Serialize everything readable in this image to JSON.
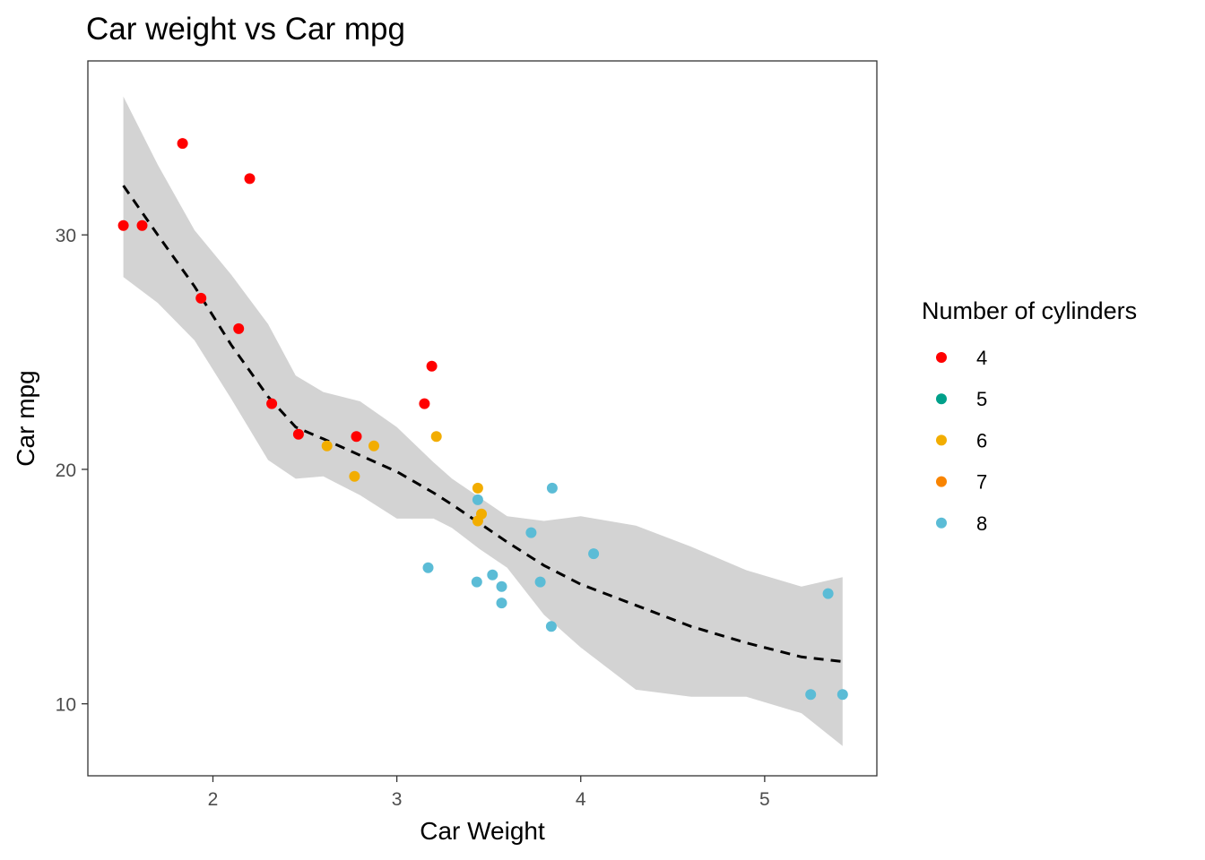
{
  "chart_data": {
    "type": "scatter",
    "title": "Car weight vs Car mpg",
    "xlabel": "Car Weight",
    "ylabel": "Car mpg",
    "xlim": [
      1.32,
      5.61
    ],
    "ylim": [
      6.93,
      37.42
    ],
    "x_ticks": [
      2,
      3,
      4,
      5
    ],
    "y_ticks": [
      10,
      20,
      30
    ],
    "grid": false,
    "legend": {
      "title": "Number of cylinders",
      "placement": "right",
      "entries": [
        {
          "label": "4",
          "color": "#ff0000"
        },
        {
          "label": "5",
          "color": "#00a08a"
        },
        {
          "label": "6",
          "color": "#f2ad00"
        },
        {
          "label": "7",
          "color": "#f98400"
        },
        {
          "label": "8",
          "color": "#5bbcd6"
        }
      ]
    },
    "series": [
      {
        "name": "4",
        "color": "#ff0000",
        "points": [
          [
            1.513,
            30.4
          ],
          [
            1.615,
            30.4
          ],
          [
            1.835,
            33.9
          ],
          [
            1.935,
            27.3
          ],
          [
            2.14,
            26.0
          ],
          [
            2.2,
            32.4
          ],
          [
            2.32,
            22.8
          ],
          [
            2.465,
            21.5
          ],
          [
            2.78,
            21.4
          ],
          [
            3.15,
            22.8
          ],
          [
            3.19,
            24.4
          ]
        ]
      },
      {
        "name": "6",
        "color": "#f2ad00",
        "points": [
          [
            2.62,
            21.0
          ],
          [
            2.77,
            19.7
          ],
          [
            2.875,
            21.0
          ],
          [
            3.215,
            21.4
          ],
          [
            3.44,
            19.2
          ],
          [
            3.44,
            17.8
          ],
          [
            3.46,
            18.1
          ]
        ]
      },
      {
        "name": "8",
        "color": "#5bbcd6",
        "points": [
          [
            3.17,
            15.8
          ],
          [
            3.435,
            15.2
          ],
          [
            3.44,
            18.7
          ],
          [
            3.52,
            15.5
          ],
          [
            3.57,
            15.0
          ],
          [
            3.57,
            14.3
          ],
          [
            3.73,
            17.3
          ],
          [
            3.78,
            15.2
          ],
          [
            3.84,
            13.3
          ],
          [
            3.845,
            19.2
          ],
          [
            4.07,
            16.4
          ],
          [
            5.25,
            10.4
          ],
          [
            5.345,
            14.7
          ],
          [
            5.424,
            10.4
          ]
        ]
      }
    ],
    "smooth": {
      "style": "dashed",
      "line_color": "#000000",
      "band_color": "#d3d3d3",
      "x": [
        1.513,
        1.7,
        1.9,
        2.1,
        2.3,
        2.45,
        2.6,
        2.8,
        3.0,
        3.2,
        3.3,
        3.45,
        3.6,
        3.8,
        4.0,
        4.3,
        4.6,
        4.9,
        5.2,
        5.424
      ],
      "y": [
        32.1,
        30.0,
        27.8,
        25.3,
        23.1,
        21.8,
        21.3,
        20.6,
        19.9,
        19.0,
        18.5,
        17.7,
        16.9,
        15.9,
        15.1,
        14.2,
        13.3,
        12.6,
        12.0,
        11.8
      ],
      "upper": [
        35.9,
        33.0,
        30.2,
        28.3,
        26.2,
        24.0,
        23.3,
        22.9,
        21.8,
        20.3,
        19.6,
        18.8,
        18.0,
        17.8,
        18.0,
        17.6,
        16.7,
        15.7,
        15.0,
        15.4
      ],
      "lower": [
        28.2,
        27.1,
        25.5,
        23.0,
        20.4,
        19.6,
        19.7,
        18.9,
        17.9,
        17.9,
        17.5,
        16.6,
        15.8,
        13.8,
        12.4,
        10.6,
        10.3,
        10.3,
        9.6,
        8.2
      ]
    }
  }
}
